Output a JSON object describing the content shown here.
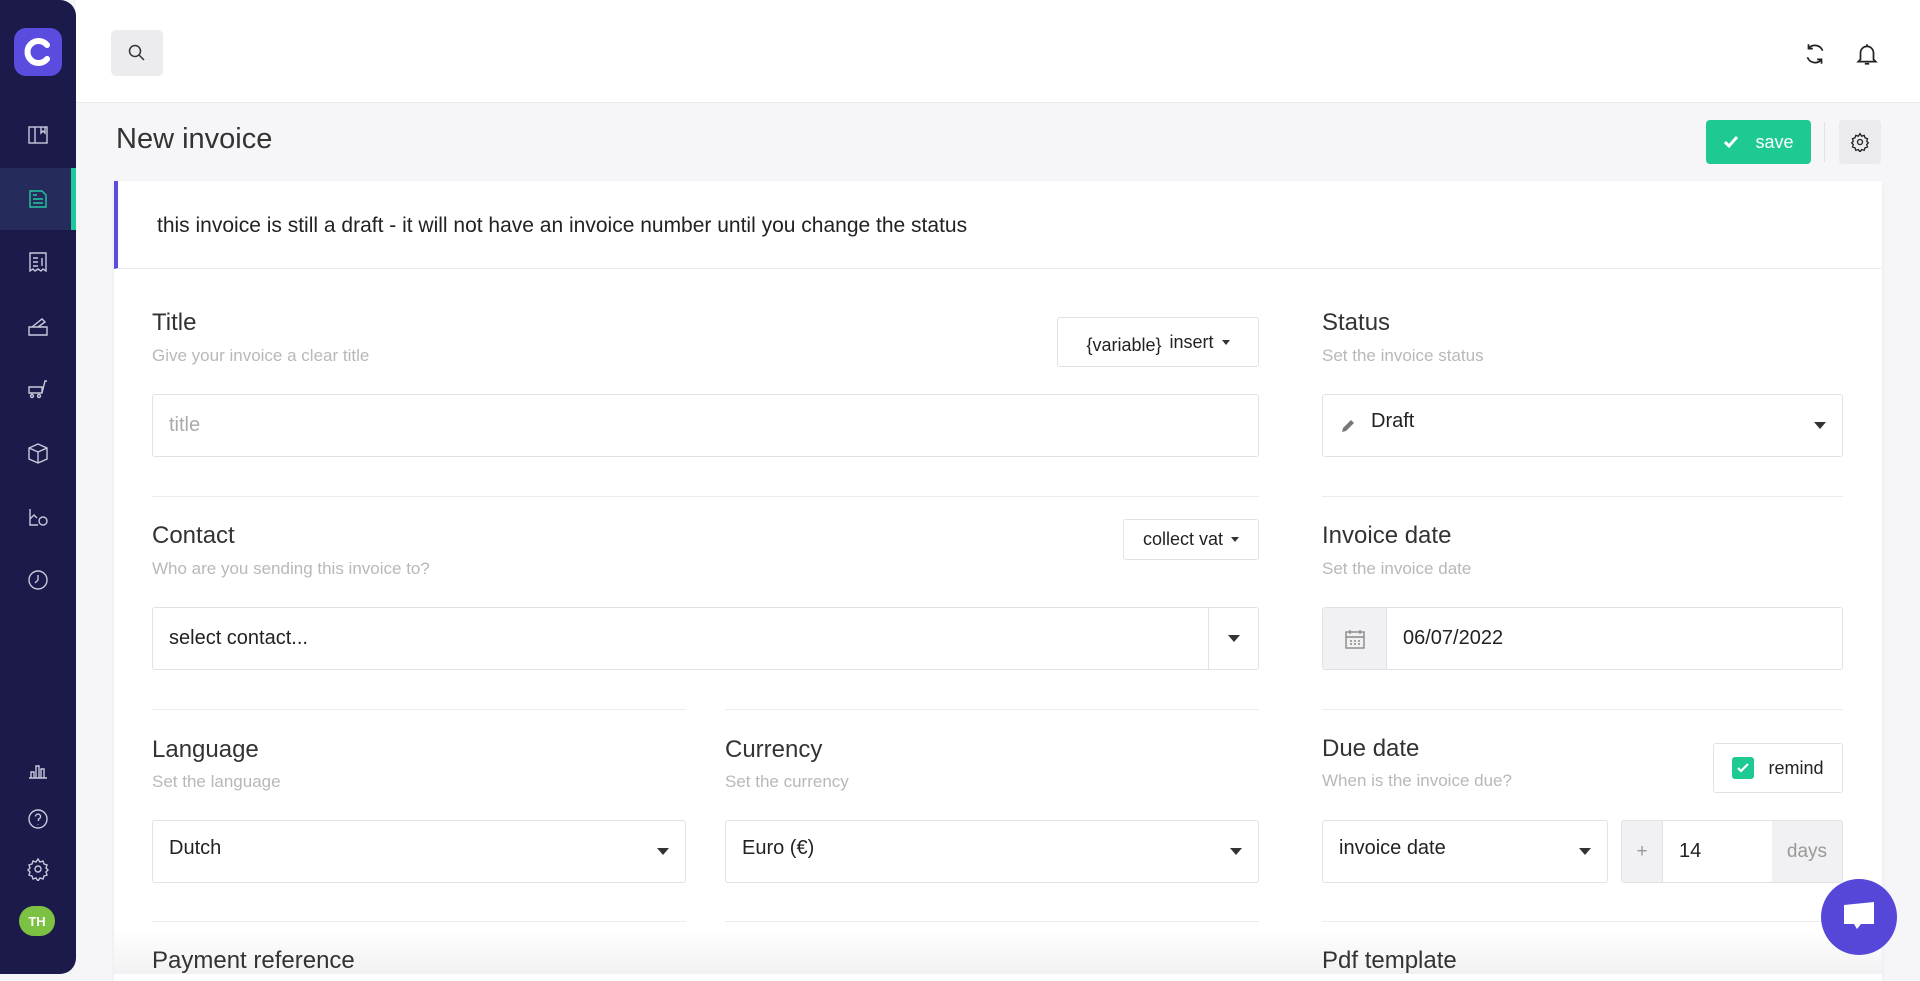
{
  "sidebar": {
    "items": [
      "book-icon",
      "invoice-icon",
      "receipt-icon",
      "quote-icon",
      "cart-icon",
      "box-icon",
      "time-report-icon",
      "clock-icon"
    ],
    "bottom": [
      "chart-icon",
      "help-icon",
      "settings-icon"
    ],
    "avatar": "TH",
    "active_color": "#1fc89a"
  },
  "header": {
    "search": "search-icon",
    "sync": "sync-icon",
    "bell": "bell-icon"
  },
  "page": {
    "title": "New invoice",
    "save_label": "save"
  },
  "alert": "this invoice is still a draft - it will not have an invoice number until you change the status",
  "form": {
    "title": {
      "label": "Title",
      "sub": "Give your invoice a clear title",
      "placeholder": "title",
      "var": "{variable}",
      "insert": "insert"
    },
    "status": {
      "label": "Status",
      "sub": "Set the invoice status",
      "value": "Draft"
    },
    "contact": {
      "label": "Contact",
      "sub": "Who are you sending this invoice to?",
      "value": "select contact...",
      "collect": "collect vat"
    },
    "invoice_date": {
      "label": "Invoice date",
      "sub": "Set the invoice date",
      "value": "06/07/2022"
    },
    "language": {
      "label": "Language",
      "sub": "Set the language",
      "value": "Dutch"
    },
    "currency": {
      "label": "Currency",
      "sub": "Set the currency",
      "value": "Euro (€)"
    },
    "due": {
      "label": "Due date",
      "sub": "When is the invoice due?",
      "remind": "remind",
      "remind_checked": true,
      "basis": "invoice date",
      "plus": "+",
      "days": "14",
      "unit": "days"
    },
    "payment_reference": {
      "label": "Payment reference"
    },
    "pdf_template": {
      "label": "Pdf template"
    }
  }
}
